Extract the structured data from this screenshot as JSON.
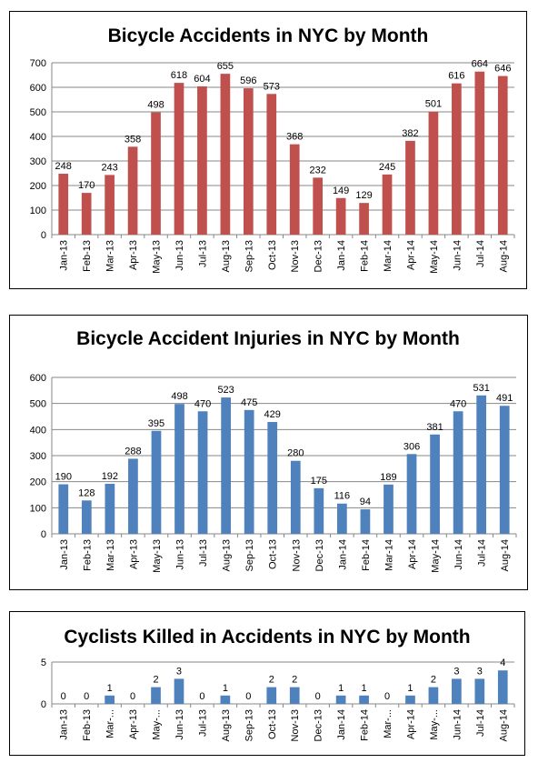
{
  "chart_data": [
    {
      "type": "bar",
      "title": "Bicycle Accidents in NYC by Month",
      "categories": [
        "Jan-13",
        "Feb-13",
        "Mar-13",
        "Apr-13",
        "May-13",
        "Jun-13",
        "Jul-13",
        "Aug-13",
        "Sep-13",
        "Oct-13",
        "Nov-13",
        "Dec-13",
        "Jan-14",
        "Feb-14",
        "Mar-14",
        "Apr-14",
        "May-14",
        "Jun-14",
        "Jul-14",
        "Aug-14"
      ],
      "values": [
        248,
        170,
        243,
        358,
        498,
        618,
        604,
        655,
        596,
        573,
        368,
        232,
        149,
        129,
        245,
        382,
        501,
        616,
        664,
        646
      ],
      "ylim": [
        0,
        700
      ],
      "yticks": [
        0,
        100,
        200,
        300,
        400,
        500,
        600,
        700
      ],
      "color": "#c0504d",
      "grid": true,
      "legend": "none"
    },
    {
      "type": "bar",
      "title": "Bicycle Accident Injuries in NYC by Month",
      "categories": [
        "Jan-13",
        "Feb-13",
        "Mar-13",
        "Apr-13",
        "May-13",
        "Jun-13",
        "Jul-13",
        "Aug-13",
        "Sep-13",
        "Oct-13",
        "Nov-13",
        "Dec-13",
        "Jan-14",
        "Feb-14",
        "Mar-14",
        "Apr-14",
        "May-14",
        "Jun-14",
        "Jul-14",
        "Aug-14"
      ],
      "values": [
        190,
        128,
        192,
        288,
        395,
        498,
        470,
        523,
        475,
        429,
        280,
        175,
        116,
        94,
        189,
        306,
        381,
        470,
        531,
        491
      ],
      "ylim": [
        0,
        600
      ],
      "yticks": [
        0,
        100,
        200,
        300,
        400,
        500,
        600
      ],
      "color": "#4f81bd",
      "grid": true,
      "legend": "none"
    },
    {
      "type": "bar",
      "title": "Cyclists Killed in Accidents in NYC by Month",
      "categories": [
        "Jan-13",
        "Feb-13",
        "Mar-...",
        "Apr-13",
        "May-...",
        "Jun-13",
        "Jul-13",
        "Aug-13",
        "Sep-13",
        "Oct-13",
        "Nov-13",
        "Dec-13",
        "Jan-14",
        "Feb-14",
        "Mar-...",
        "Apr-14",
        "May-...",
        "Jun-14",
        "Jul-14",
        "Aug-14"
      ],
      "values": [
        0,
        0,
        1,
        0,
        2,
        3,
        0,
        1,
        0,
        2,
        2,
        0,
        1,
        1,
        0,
        1,
        2,
        3,
        3,
        4
      ],
      "ylim": [
        0,
        5
      ],
      "yticks": [
        0,
        5
      ],
      "color": "#4f81bd",
      "grid": true,
      "legend": "none"
    }
  ]
}
